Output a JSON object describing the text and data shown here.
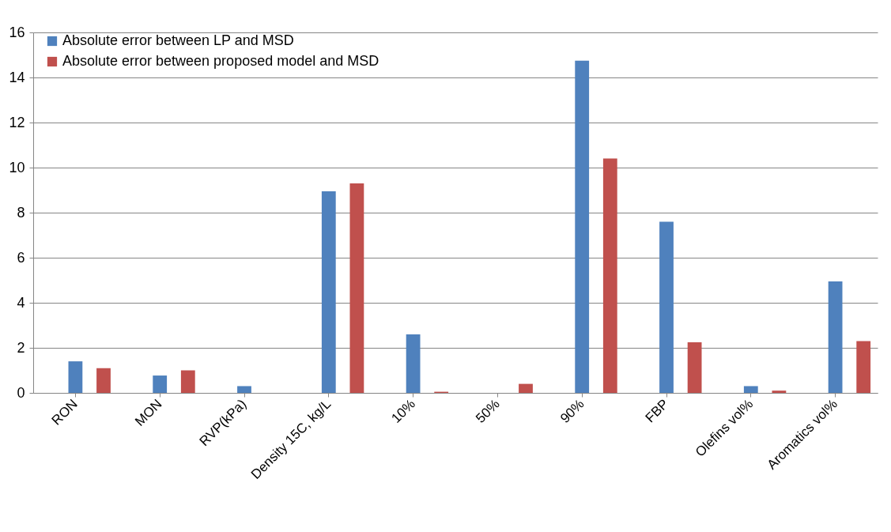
{
  "chart_data": {
    "type": "bar",
    "categories": [
      "RON",
      "MON",
      "RVP(kPa)",
      "Density 15C, kg/L",
      "10%",
      "50%",
      "90%",
      "FBP",
      "Olefins vol%",
      "Aromatics vol%"
    ],
    "series": [
      {
        "name": "Absolute error between LP and MSD",
        "color": "#4f81bd",
        "values": [
          1.4,
          0.77,
          0.3,
          8.95,
          2.6,
          0,
          14.75,
          7.6,
          0.3,
          4.95
        ]
      },
      {
        "name": "Absolute error between proposed model and MSD",
        "color": "#c0504d",
        "values": [
          1.1,
          1.0,
          0,
          9.3,
          0.05,
          0.4,
          10.4,
          2.25,
          0.1,
          2.3
        ]
      }
    ],
    "ylim": [
      0,
      16
    ],
    "yticks": [
      0,
      2,
      4,
      6,
      8,
      10,
      12,
      14,
      16
    ],
    "grid": "y",
    "legend": "top left"
  }
}
